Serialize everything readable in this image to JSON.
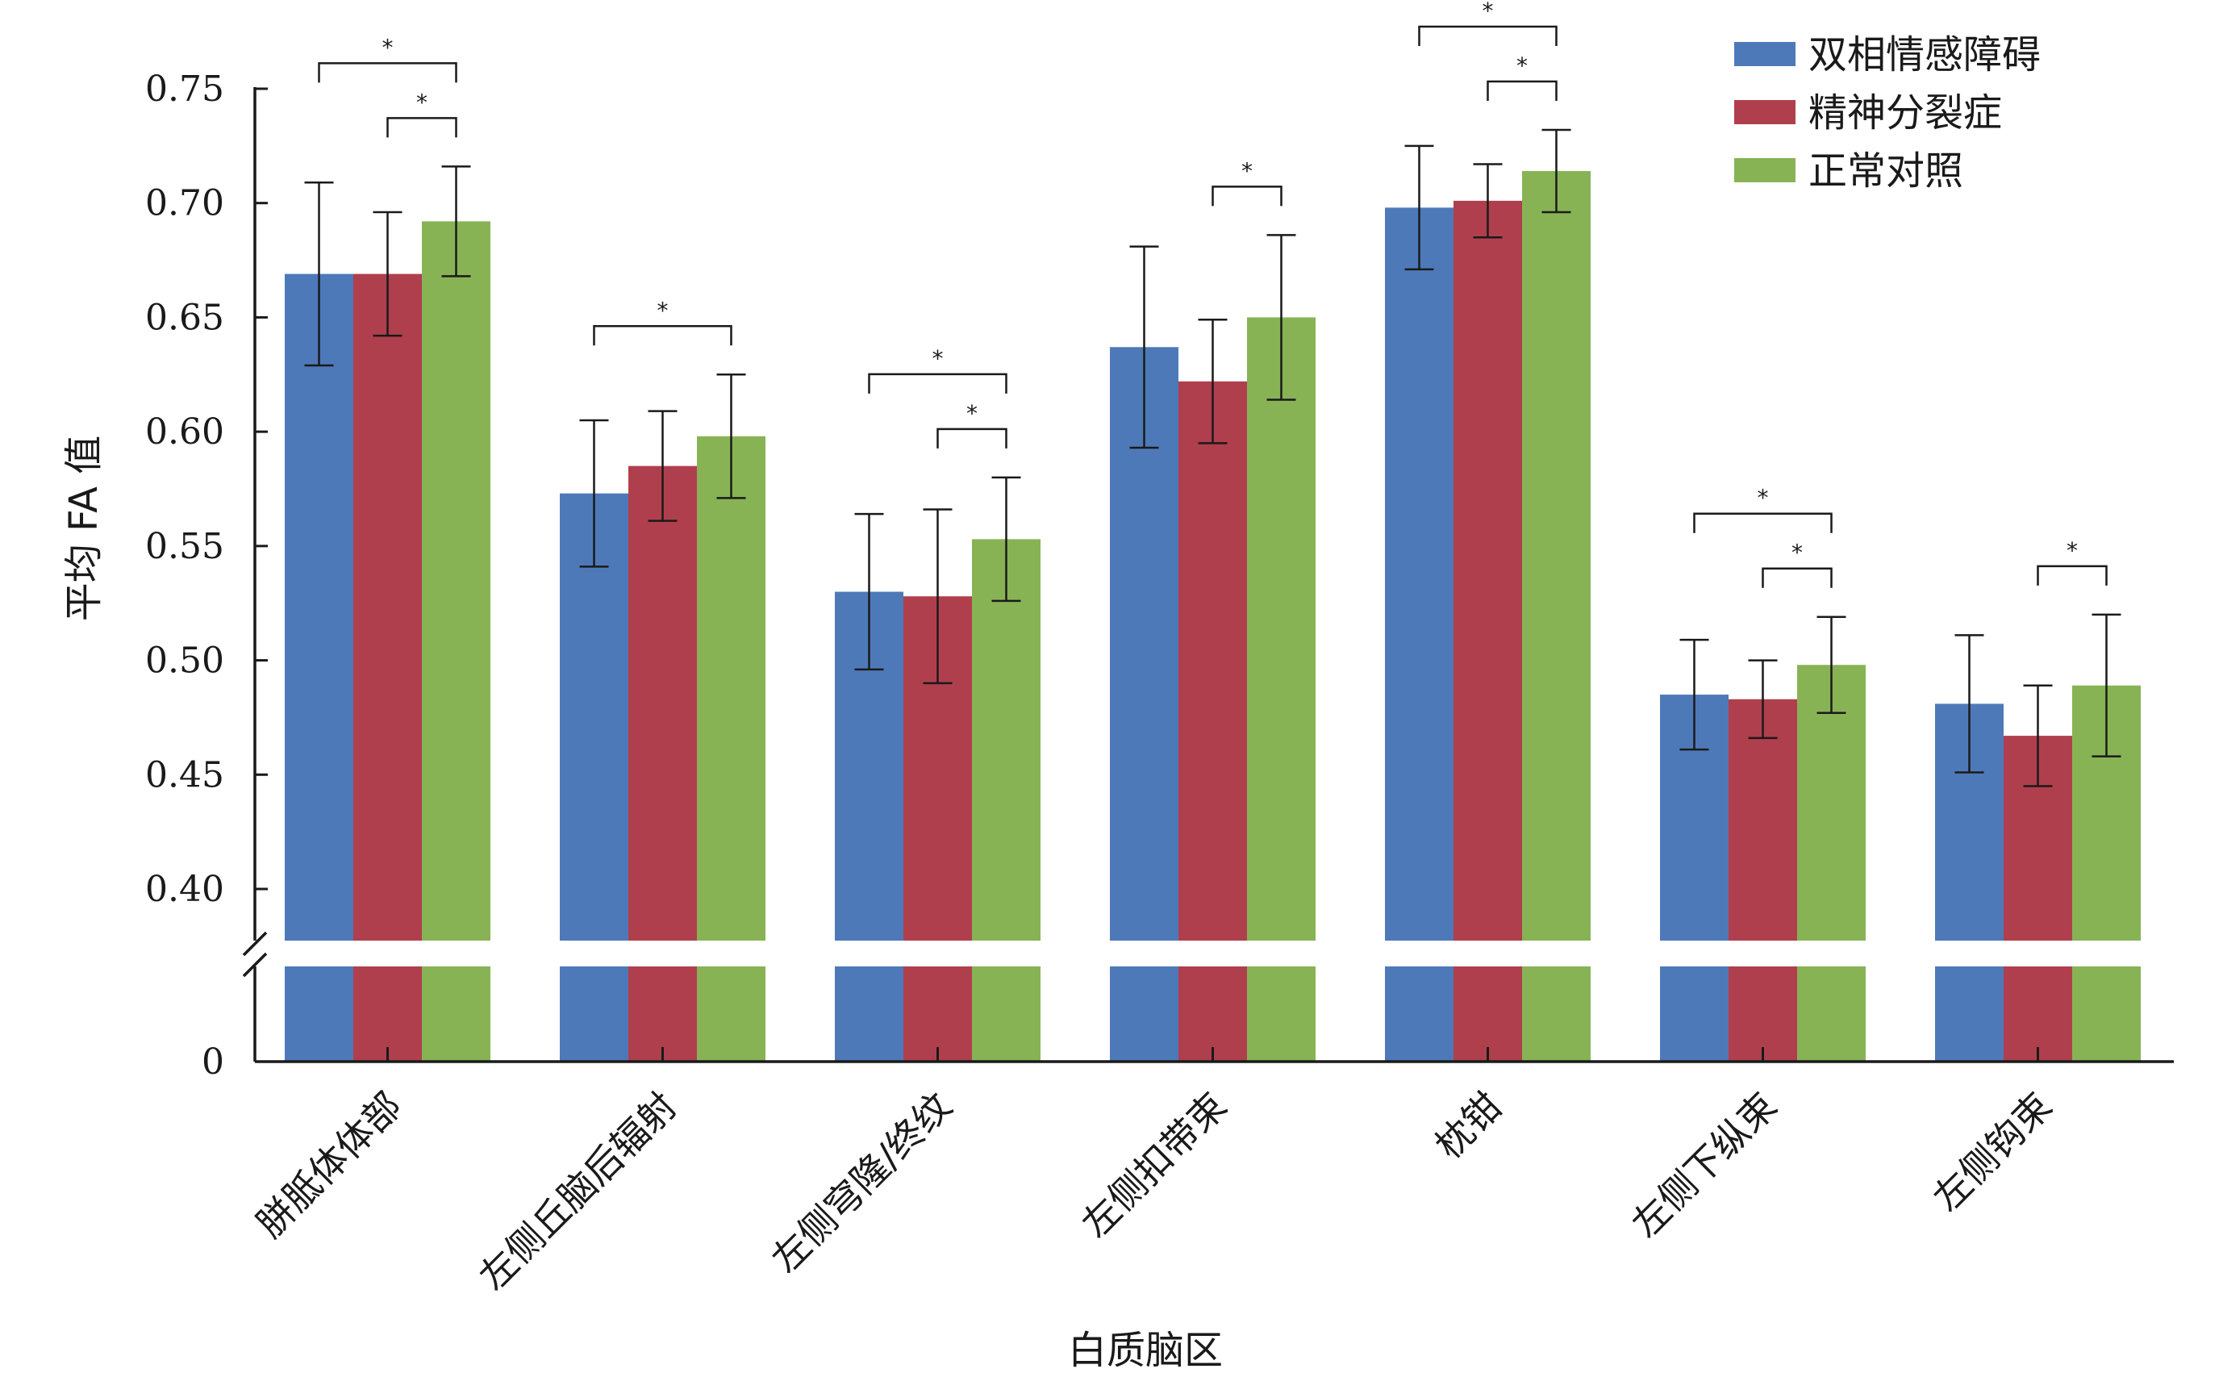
{
  "chart_data": {
    "type": "bar",
    "xlabel": "白质脑区",
    "ylabel": "平均 FA 值",
    "categories": [
      "胼胝体体部",
      "左侧丘脑后辐射",
      "左侧穹隆/终纹",
      "左侧扣带束",
      "枕钳",
      "左侧下纵束",
      "左侧钩束"
    ],
    "series": [
      {
        "name": "双相情感障碍",
        "color": "#4e79b9",
        "values": [
          0.669,
          0.573,
          0.53,
          0.637,
          0.698,
          0.485,
          0.481
        ],
        "errors": [
          0.04,
          0.032,
          0.034,
          0.044,
          0.027,
          0.024,
          0.03
        ]
      },
      {
        "name": "精神分裂症",
        "color": "#b03f4d",
        "values": [
          0.669,
          0.585,
          0.528,
          0.622,
          0.701,
          0.483,
          0.467
        ],
        "errors": [
          0.027,
          0.024,
          0.038,
          0.027,
          0.016,
          0.017,
          0.022
        ]
      },
      {
        "name": "正常对照",
        "color": "#87b355",
        "values": [
          0.692,
          0.598,
          0.553,
          0.65,
          0.714,
          0.498,
          0.489
        ],
        "errors": [
          0.024,
          0.027,
          0.027,
          0.036,
          0.018,
          0.021,
          0.031
        ]
      }
    ],
    "ylim": [
      0,
      0.75
    ],
    "axis_break": [
      0,
      0.38
    ],
    "yticks": [
      0,
      0.4,
      0.45,
      0.5,
      0.55,
      0.6,
      0.65,
      0.7,
      0.75
    ],
    "ytick_labels": [
      "0",
      "0.40",
      "0.45",
      "0.50",
      "0.55",
      "0.60",
      "0.65",
      "0.70",
      "0.75"
    ],
    "significance_marker": "*",
    "significance": [
      {
        "category": 0,
        "from": 0,
        "to": 2
      },
      {
        "category": 0,
        "from": 1,
        "to": 2
      },
      {
        "category": 1,
        "from": 0,
        "to": 2
      },
      {
        "category": 2,
        "from": 0,
        "to": 2
      },
      {
        "category": 2,
        "from": 1,
        "to": 2
      },
      {
        "category": 3,
        "from": 1,
        "to": 2
      },
      {
        "category": 4,
        "from": 0,
        "to": 2
      },
      {
        "category": 4,
        "from": 1,
        "to": 2
      },
      {
        "category": 5,
        "from": 0,
        "to": 2
      },
      {
        "category": 5,
        "from": 1,
        "to": 2
      },
      {
        "category": 6,
        "from": 1,
        "to": 2
      }
    ],
    "legend_position": "top-right",
    "grid": false
  }
}
